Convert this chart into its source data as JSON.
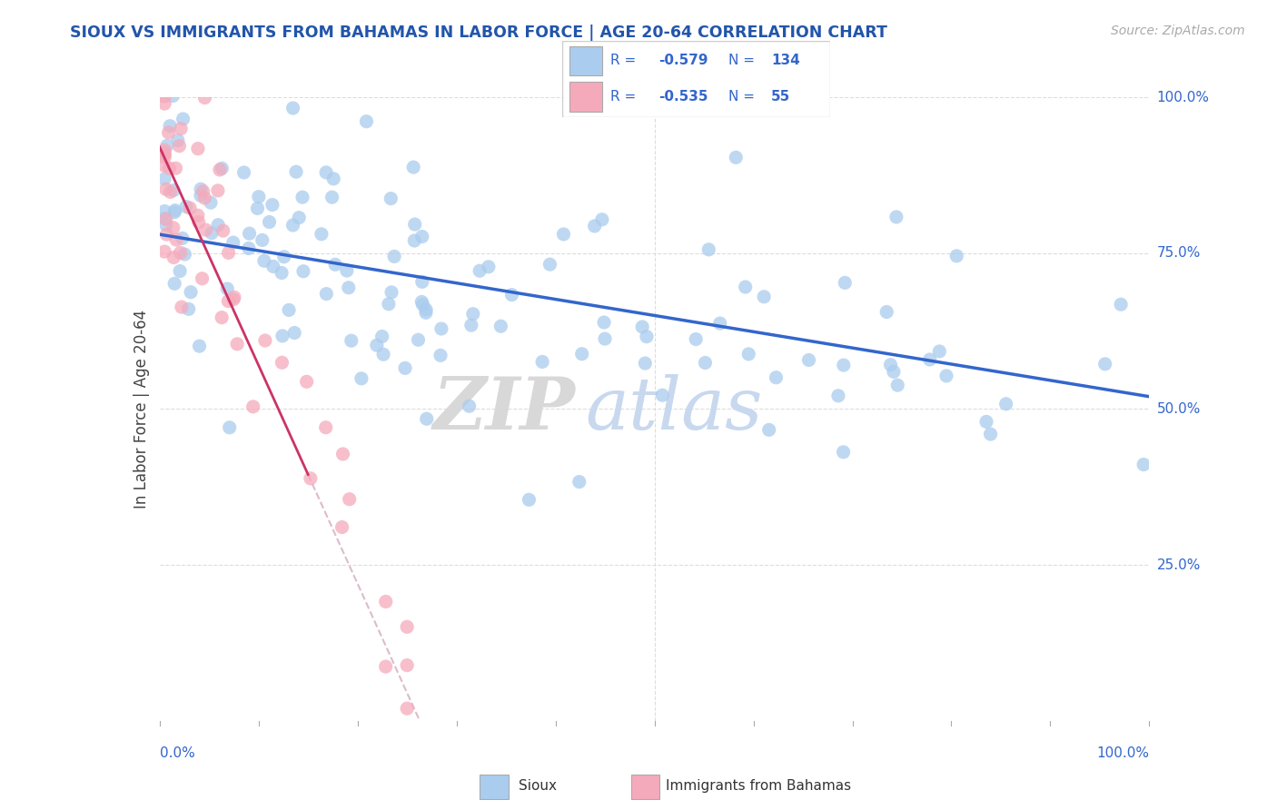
{
  "title": "SIOUX VS IMMIGRANTS FROM BAHAMAS IN LABOR FORCE | AGE 20-64 CORRELATION CHART",
  "source_text": "Source: ZipAtlas.com",
  "ylabel": "In Labor Force | Age 20-64",
  "legend_label1": "Sioux",
  "legend_label2": "Immigrants from Bahamas",
  "R1": -0.579,
  "N1": 134,
  "R2": -0.535,
  "N2": 55,
  "title_color": "#2255aa",
  "sioux_color": "#aaccee",
  "bahamas_color": "#f5aabb",
  "trend_line1_color": "#3366cc",
  "trend_line2_color": "#cc3366",
  "dash_color": "#ddbbcc",
  "watermark_color": "#e8e8e8",
  "background_color": "#ffffff",
  "axis_label_color": "#3366cc",
  "legend_text_color": "#3366cc",
  "grid_color": "#dddddd"
}
